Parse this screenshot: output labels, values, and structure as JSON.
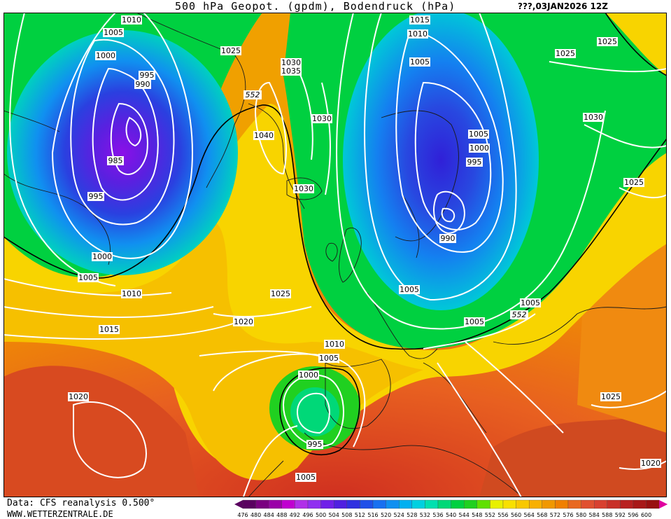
{
  "header": {
    "title": "500 hPa Geopot. (gpdm), Bodendruck (hPa)",
    "run": "???,03JAN2026 12Z"
  },
  "footer": {
    "source": "Data: CFS reanalysis 0.500°",
    "site": "WWW.WETTERZENTRALE.DE"
  },
  "legend": {
    "levels": [
      "476",
      "480",
      "484",
      "488",
      "492",
      "496",
      "500",
      "504",
      "508",
      "512",
      "516",
      "520",
      "524",
      "528",
      "532",
      "536",
      "540",
      "544",
      "548",
      "552",
      "556",
      "560",
      "564",
      "568",
      "572",
      "576",
      "580",
      "584",
      "588",
      "592",
      "596",
      "600"
    ],
    "colors": [
      "#5a0060",
      "#7a0080",
      "#9a00a8",
      "#c000d0",
      "#b030e8",
      "#9030f0",
      "#7020e8",
      "#5020e0",
      "#3030e0",
      "#2050e8",
      "#1870f0",
      "#1090f0",
      "#00b0f0",
      "#00d0e0",
      "#00e0b0",
      "#00d878",
      "#00d040",
      "#20d020",
      "#60e000",
      "#e8f000",
      "#f8e000",
      "#f8c800",
      "#f8b000",
      "#f09800",
      "#f08000",
      "#e86820",
      "#e05030",
      "#d84030",
      "#c83028",
      "#b82020",
      "#a81818",
      "#981010"
    ]
  },
  "map_labels": {
    "isobars": [
      "1010",
      "1005",
      "1000",
      "995",
      "990",
      "985",
      "995",
      "1000",
      "1005",
      "1010",
      "1015",
      "1020",
      "1020",
      "1025",
      "1030",
      "1035",
      "1040",
      "1030",
      "1030",
      "1015",
      "1010",
      "1005",
      "1005",
      "1000",
      "995",
      "990",
      "1005",
      "1005",
      "1005",
      "1025",
      "1025",
      "1030",
      "1025",
      "1025",
      "1020",
      "1010",
      "1005",
      "1000",
      "995",
      "1005",
      "1025",
      "1030"
    ],
    "height_552": [
      "552",
      "552",
      "552"
    ]
  }
}
